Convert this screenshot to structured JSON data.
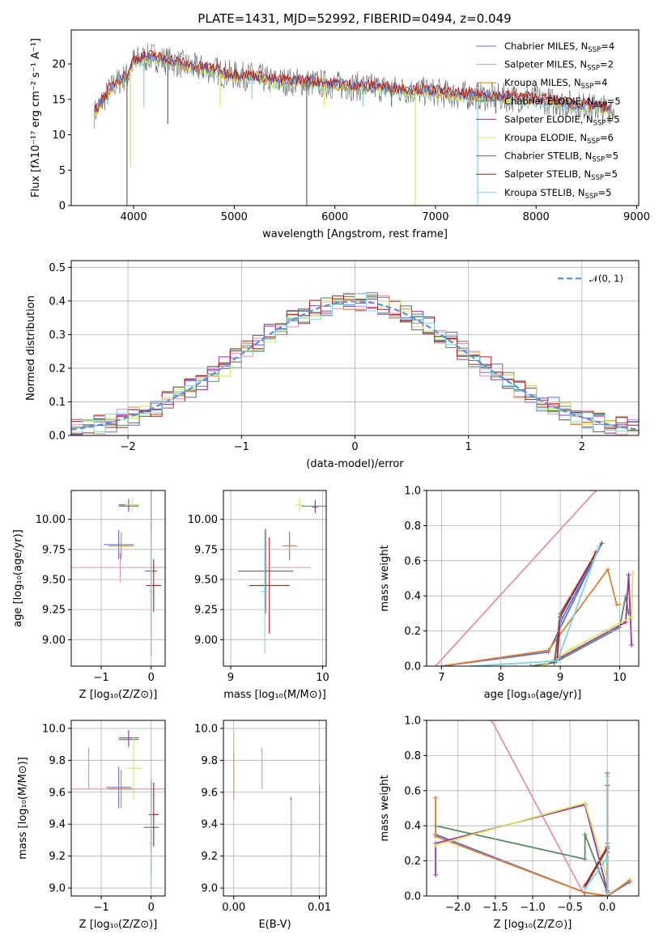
{
  "figure": {
    "title": "PLATE=1431, MJD=52992, FIBERID=0494, z=0.049"
  },
  "models": [
    {
      "name": "Chabrier MILES",
      "nssp": "4",
      "color": "#5b6fd6"
    },
    {
      "name": "Salpeter MILES",
      "nssp": "2",
      "color": "#e88bb8"
    },
    {
      "name": "Kroupa MILES",
      "nssp": "4",
      "color": "#dc7f2e"
    },
    {
      "name": "Chabrier ELODIE",
      "nssp": "5",
      "color": "#5a8a62"
    },
    {
      "name": "Salpeter ELODIE",
      "nssp": "5",
      "color": "#9b30b0"
    },
    {
      "name": "Kroupa ELODIE",
      "nssp": "6",
      "color": "#d4e85a"
    },
    {
      "name": "Chabrier STELIB",
      "nssp": "5",
      "color": "#666666"
    },
    {
      "name": "Salpeter STELIB",
      "nssp": "5",
      "color": "#b01c1c"
    },
    {
      "name": "Kroupa STELIB",
      "nssp": "5",
      "color": "#7fd6d8"
    }
  ],
  "chart_data": [
    {
      "id": "spectrum",
      "type": "line",
      "xlabel": "wavelength [Angstrom, rest frame]",
      "ylabel": "Flux [fλ10⁻¹⁷ erg cm⁻² s⁻¹ A⁻¹]",
      "xlim": [
        3380,
        9020
      ],
      "ylim": [
        0,
        24.8
      ],
      "xticks": [
        4000,
        5000,
        6000,
        7000,
        8000,
        9000
      ],
      "yticks": [
        0,
        5,
        10,
        15,
        20
      ],
      "legend": "upper right",
      "x": [
        3610,
        3700,
        3800,
        3900,
        3950,
        4000,
        4100,
        4200,
        4300,
        4400,
        4500,
        4600,
        4700,
        4800,
        4900,
        5000,
        5200,
        5400,
        5600,
        5800,
        6000,
        6200,
        6400,
        6600,
        6800,
        7000,
        7200,
        7400,
        7600,
        7800,
        8000,
        8200,
        8400,
        8600,
        8750
      ],
      "values": [
        13.0,
        15.0,
        17.0,
        18.0,
        18.5,
        20.5,
        20.8,
        21.0,
        20.5,
        20.3,
        19.8,
        19.5,
        19.3,
        19.2,
        18.6,
        18.4,
        18.2,
        17.5,
        17.5,
        17.3,
        17.0,
        16.8,
        16.7,
        16.4,
        16.2,
        16.0,
        15.6,
        15.5,
        15.3,
        15.2,
        15.0,
        14.6,
        14.2,
        13.8,
        13.6
      ],
      "dips": [
        {
          "x": 3934,
          "y": 0
        },
        {
          "x": 3969,
          "y": 5.5
        },
        {
          "x": 4102,
          "y": 14
        },
        {
          "x": 4340,
          "y": 11.5
        },
        {
          "x": 4861,
          "y": 14
        },
        {
          "x": 5175,
          "y": 15
        },
        {
          "x": 5720,
          "y": 0
        },
        {
          "x": 5893,
          "y": 14
        },
        {
          "x": 6280,
          "y": 14
        },
        {
          "x": 6563,
          "y": 14
        },
        {
          "x": 6800,
          "y": 0
        },
        {
          "x": 7420,
          "y": 0
        },
        {
          "x": 7600,
          "y": 13
        }
      ]
    },
    {
      "id": "residuals",
      "type": "step",
      "xlabel": "(data-model)/error",
      "ylabel": "Normed distribution",
      "xlim": [
        -2.5,
        2.5
      ],
      "ylim": [
        0,
        0.52
      ],
      "xticks": [
        -2,
        -1,
        0,
        1,
        2
      ],
      "yticks": [
        0.0,
        0.1,
        0.2,
        0.3,
        0.4,
        0.5
      ],
      "legend": "upper right",
      "normal_label": "𝒩(0, 1)",
      "normal_color": "#5b8fd6",
      "bin_width": 0.1
    },
    {
      "id": "age-vs-Z",
      "type": "errorbar",
      "xlabel": "Z [log₁₀(Z/Z⊙)]",
      "ylabel": "age  [log₁₀(age/yr)]",
      "xlim": [
        -1.6,
        0.28
      ],
      "ylim": [
        8.78,
        10.24
      ],
      "xticks": [
        -1,
        0
      ],
      "yticks": [
        9.0,
        9.25,
        9.5,
        9.75,
        10.0
      ],
      "points": [
        {
          "model": 1,
          "x": -0.62,
          "xerr": 1.0,
          "y": 9.6,
          "yerr": 0.12
        },
        {
          "model": 0,
          "x": -0.65,
          "xerr": 0.3,
          "y": 9.79,
          "yerr": 0.12
        },
        {
          "model": 2,
          "x": -0.6,
          "xerr": 0.25,
          "y": 9.78,
          "yerr": 0.11
        },
        {
          "model": 3,
          "x": -0.45,
          "xerr": 0.2,
          "y": 10.11,
          "yerr": 0.05
        },
        {
          "model": 4,
          "x": -0.45,
          "xerr": 0.2,
          "y": 10.12,
          "yerr": 0.05
        },
        {
          "model": 5,
          "x": -0.38,
          "xerr": 0.15,
          "y": 10.12,
          "yerr": 0.06
        },
        {
          "model": 6,
          "x": 0.0,
          "xerr": 0.12,
          "y": 9.57,
          "yerr": 0.7
        },
        {
          "model": 7,
          "x": 0.05,
          "xerr": 0.15,
          "y": 9.45,
          "yerr": 0.22
        },
        {
          "model": 8,
          "x": 0.0,
          "xerr": 0.04,
          "y": 9.4,
          "yerr": 0.52
        }
      ]
    },
    {
      "id": "age-vs-mass",
      "type": "errorbar",
      "xlabel": "mass [log₁₀(M/M⊙)]",
      "ylabel": "",
      "xlim": [
        8.92,
        10.04
      ],
      "ylim": [
        8.78,
        10.24
      ],
      "xticks": [
        9,
        10
      ],
      "yticks": [
        9.0,
        9.25,
        9.5,
        9.75,
        10.0
      ],
      "points": [
        {
          "model": 6,
          "x": 9.38,
          "xerr": 0.3,
          "y": 9.57,
          "yerr": 0.35
        },
        {
          "model": 7,
          "x": 9.42,
          "xerr": 0.22,
          "y": 9.45,
          "yerr": 0.4
        },
        {
          "model": 8,
          "x": 9.37,
          "xerr": 0.05,
          "y": 9.4,
          "yerr": 0.52
        },
        {
          "model": 1,
          "x": 9.62,
          "xerr": 0.25,
          "y": 9.6,
          "yerr": 0.0
        },
        {
          "model": 0,
          "x": 9.64,
          "xerr": 0.07,
          "y": 9.78,
          "yerr": 0.12
        },
        {
          "model": 2,
          "x": 9.64,
          "xerr": 0.08,
          "y": 9.78,
          "yerr": 0.12
        },
        {
          "model": 3,
          "x": 9.92,
          "xerr": 0.15,
          "y": 10.11,
          "yerr": 0.05
        },
        {
          "model": 4,
          "x": 9.92,
          "xerr": 0.03,
          "y": 10.1,
          "yerr": 0.05
        },
        {
          "model": 5,
          "x": 9.75,
          "xerr": 0.05,
          "y": 10.12,
          "yerr": 0.06
        }
      ]
    },
    {
      "id": "weight-vs-age",
      "type": "line",
      "xlabel": "age  [log₁₀(age/yr)]",
      "ylabel": "mass weight",
      "xlim": [
        6.75,
        10.32
      ],
      "ylim": [
        0,
        1.0
      ],
      "xticks": [
        7,
        8,
        9,
        10
      ],
      "yticks": [
        0.0,
        0.2,
        0.4,
        0.6,
        0.8,
        1.0
      ],
      "series": [
        {
          "model": 1,
          "x": [
            6.9,
            9.6
          ],
          "y": [
            0.0,
            1.0
          ]
        },
        {
          "model": 0,
          "x": [
            7.0,
            8.8,
            9.7,
            9.0,
            8.9
          ],
          "y": [
            0.0,
            0.08,
            0.7,
            0.25,
            0.02
          ]
        },
        {
          "model": 2,
          "x": [
            7.0,
            8.8,
            9.8,
            9.95,
            10.0
          ],
          "y": [
            0.0,
            0.09,
            0.55,
            0.35,
            0.35
          ]
        },
        {
          "model": 3,
          "x": [
            8.5,
            8.9,
            10.0,
            10.1,
            10.15
          ],
          "y": [
            0.0,
            0.02,
            0.22,
            0.4,
            0.3
          ]
        },
        {
          "model": 4,
          "x": [
            8.7,
            8.9,
            10.1,
            10.15,
            10.2
          ],
          "y": [
            0.0,
            0.03,
            0.25,
            0.52,
            0.12
          ]
        },
        {
          "model": 5,
          "x": [
            8.7,
            9.2,
            10.2,
            10.22
          ],
          "y": [
            0.0,
            0.1,
            0.28,
            0.53
          ]
        },
        {
          "model": 6,
          "x": [
            8.9,
            9.0,
            9.7
          ],
          "y": [
            0.02,
            0.3,
            0.7
          ]
        },
        {
          "model": 7,
          "x": [
            8.95,
            9.0,
            9.6
          ],
          "y": [
            0.05,
            0.28,
            0.65
          ]
        },
        {
          "model": 8,
          "x": [
            7.5,
            8.95,
            9.65
          ],
          "y": [
            0.0,
            0.03,
            0.68
          ]
        }
      ]
    },
    {
      "id": "mass-vs-Z",
      "type": "errorbar",
      "xlabel": "Z [log₁₀(Z/Z⊙)]",
      "ylabel": "mass [log₁₀(M/M⊙)]",
      "xlim": [
        -1.6,
        0.28
      ],
      "ylim": [
        8.95,
        10.05
      ],
      "xticks": [
        -1,
        0
      ],
      "yticks": [
        9.0,
        9.2,
        9.4,
        9.6,
        9.8,
        10.0
      ],
      "points": [
        {
          "model": 1,
          "x": -0.62,
          "xerr": 1.0,
          "y": 9.62,
          "yerr": 0.0
        },
        {
          "model": 1,
          "x": -1.25,
          "xerr": 0.0,
          "y": 9.75,
          "yerr": 0.13
        },
        {
          "model": 0,
          "x": -0.65,
          "xerr": 0.25,
          "y": 9.63,
          "yerr": 0.13
        },
        {
          "model": 2,
          "x": -0.6,
          "xerr": 0.25,
          "y": 9.62,
          "yerr": 0.12
        },
        {
          "model": 3,
          "x": -0.45,
          "xerr": 0.2,
          "y": 9.93,
          "yerr": 0.05
        },
        {
          "model": 4,
          "x": -0.45,
          "xerr": 0.2,
          "y": 9.94,
          "yerr": 0.05
        },
        {
          "model": 5,
          "x": -0.35,
          "xerr": 0.15,
          "y": 9.75,
          "yerr": 0.2
        },
        {
          "model": 6,
          "x": 0.0,
          "xerr": 0.15,
          "y": 9.38,
          "yerr": 0.3
        },
        {
          "model": 7,
          "x": 0.05,
          "xerr": 0.1,
          "y": 9.46,
          "yerr": 0.2
        },
        {
          "model": 8,
          "x": 0.0,
          "xerr": 0.04,
          "y": 9.28,
          "yerr": 0.28
        }
      ]
    },
    {
      "id": "mass-vs-ebv",
      "type": "errorbar",
      "xlabel": "E(B-V)",
      "ylabel": "",
      "xlim": [
        -0.0012,
        0.0108
      ],
      "ylim": [
        8.95,
        10.05
      ],
      "xticks": [
        0.0,
        0.01
      ],
      "xticklabels": [
        "0.00",
        "0.01"
      ],
      "yticks": [
        9.0,
        9.2,
        9.4,
        9.6,
        9.8,
        10.0
      ],
      "points": [
        {
          "model": 5,
          "x": 0.0,
          "xerr": 0.0,
          "y": 9.8,
          "yerr": 0.18
        },
        {
          "model": 2,
          "x": 0.0,
          "xerr": 0.0,
          "y": 9.7,
          "yerr": 0.15
        },
        {
          "model": 1,
          "x": 0.0033,
          "xerr": 0.0,
          "y": 9.75,
          "yerr": 0.13
        },
        {
          "model": 6,
          "x": 0.0067,
          "xerr": 0.0,
          "y": 9.25,
          "yerr": 0.32
        },
        {
          "model": 8,
          "x": 0.0067,
          "xerr": 0.0,
          "y": 9.25,
          "yerr": 0.3
        },
        {
          "model": 7,
          "x": 0.01,
          "xerr": 0.0,
          "y": 9.42,
          "yerr": 0.22
        }
      ]
    },
    {
      "id": "weight-vs-Z",
      "type": "line",
      "xlabel": "Z [log₁₀(Z/Z⊙)]",
      "ylabel": "mass weight",
      "xlim": [
        -2.42,
        0.42
      ],
      "ylim": [
        0,
        1.0
      ],
      "xticks": [
        -2.0,
        -1.5,
        -1.0,
        -0.5,
        0.0
      ],
      "xticklabels": [
        "−2.0",
        "−1.5",
        "−1.0",
        "−0.5",
        "0.0"
      ],
      "yticks": [
        0.0,
        0.2,
        0.4,
        0.6,
        0.8,
        1.0
      ],
      "series": [
        {
          "model": 1,
          "x": [
            -1.55,
            -0.3
          ],
          "y": [
            1.0,
            0.0
          ]
        },
        {
          "model": 0,
          "x": [
            -2.3,
            -0.3,
            0.0,
            0.3
          ],
          "y": [
            0.35,
            0.02,
            0.0,
            0.08
          ]
        },
        {
          "model": 2,
          "x": [
            -2.3,
            -2.3,
            -0.3,
            0.0,
            0.3
          ],
          "y": [
            0.56,
            0.34,
            0.02,
            0.0,
            0.09
          ]
        },
        {
          "model": 3,
          "x": [
            -2.3,
            -0.3,
            -0.3,
            0.0,
            0.0
          ],
          "y": [
            0.4,
            0.21,
            0.35,
            0.02,
            0.3
          ]
        },
        {
          "model": 4,
          "x": [
            -2.3,
            -2.3,
            -0.3,
            0.0,
            0.0
          ],
          "y": [
            0.12,
            0.3,
            0.52,
            0.03,
            0.25
          ]
        },
        {
          "model": 5,
          "x": [
            -2.3,
            -0.3,
            0.0,
            0.0
          ],
          "y": [
            0.29,
            0.53,
            0.1,
            0.28
          ]
        },
        {
          "model": 6,
          "x": [
            -0.3,
            0.0,
            0.0,
            0.0
          ],
          "y": [
            0.05,
            0.27,
            0.7,
            0.0
          ]
        },
        {
          "model": 7,
          "x": [
            -0.3,
            0.0,
            0.0,
            0.0
          ],
          "y": [
            0.06,
            0.28,
            0.63,
            0.0
          ]
        },
        {
          "model": 8,
          "x": [
            -0.3,
            0.0,
            0.0,
            0.0
          ],
          "y": [
            0.04,
            0.22,
            0.68,
            0.0
          ]
        }
      ]
    }
  ]
}
